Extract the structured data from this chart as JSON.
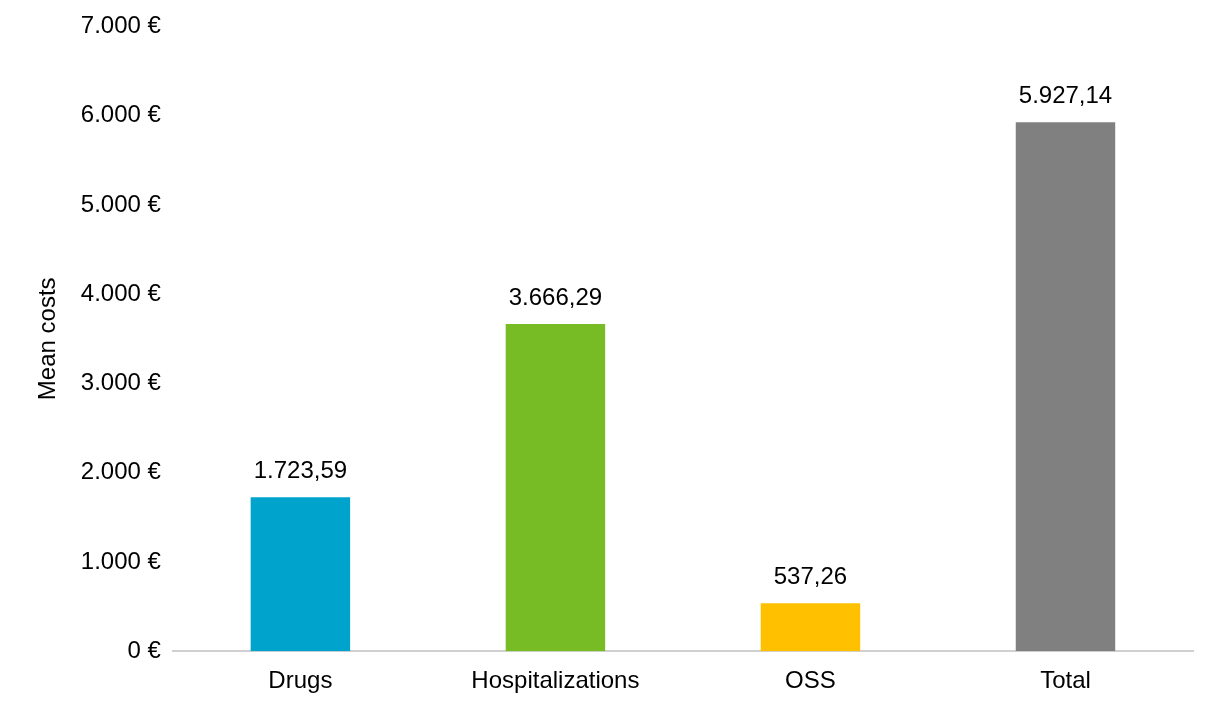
{
  "chart_data": {
    "type": "bar",
    "ylabel": "Mean costs",
    "categories": [
      "Drugs",
      "Hospitalizations",
      "OSS",
      "Total"
    ],
    "values": [
      1723.59,
      3666.29,
      537.26,
      5927.14
    ],
    "colors": [
      "#00a3cc",
      "#77bc24",
      "#ffc000",
      "#808080"
    ],
    "value_labels": [
      "1.723,59",
      "3.666,29",
      "537,26",
      "5.927,14"
    ],
    "ylim": [
      0,
      7000
    ],
    "yticks": [
      {
        "value": 0,
        "label": "0 €"
      },
      {
        "value": 1000,
        "label": "1.000 €"
      },
      {
        "value": 2000,
        "label": "2.000 €"
      },
      {
        "value": 3000,
        "label": "3.000 €"
      },
      {
        "value": 4000,
        "label": "4.000 €"
      },
      {
        "value": 5000,
        "label": "5.000 €"
      },
      {
        "value": 6000,
        "label": "6.000 €"
      },
      {
        "value": 7000,
        "label": "7.000 €"
      }
    ],
    "grid": false,
    "legend": false
  }
}
